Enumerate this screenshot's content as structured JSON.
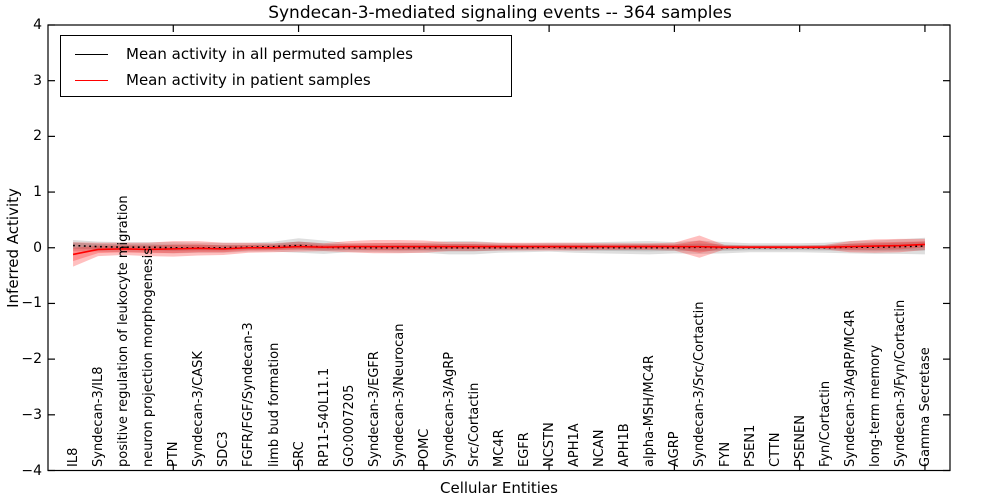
{
  "title": "Syndecan-3-mediated signaling events -- 364 samples",
  "legend": {
    "items": [
      {
        "label": "Mean activity in all permuted samples",
        "color": "#000000"
      },
      {
        "label": "Mean activity in patient samples",
        "color": "#ff0000"
      }
    ]
  },
  "chart_data": {
    "type": "line",
    "title": "Syndecan-3-mediated signaling events -- 364 samples",
    "xlabel": "Cellular Entities",
    "ylabel": "Inferred Activity",
    "ylim": [
      -4,
      4
    ],
    "yticks": [
      4,
      3,
      2,
      1,
      0,
      -1,
      -2,
      -3,
      -4
    ],
    "xtick_every": 5,
    "grid": false,
    "legend_position": "upper left",
    "categories": [
      "IL8",
      "Syndecan-3/IL8",
      "positive regulation of leukocyte migration",
      "neuron projection morphogenesis",
      "PTN",
      "Syndecan-3/CASK",
      "SDC3",
      "FGFR/FGF/Syndecan-3",
      "limb bud formation",
      "SRC",
      "RP11-540L11.1",
      "GO:0007205",
      "Syndecan-3/EGFR",
      "Syndecan-3/Neurocan",
      "POMC",
      "Syndecan-3/AgRP",
      "Src/Cortactin",
      "MC4R",
      "EGFR",
      "NCSTN",
      "APH1A",
      "NCAN",
      "APH1B",
      "alpha-MSH/MC4R",
      "AGRP",
      "Syndecan-3/Src/Cortactin",
      "FYN",
      "PSEN1",
      "CTTN",
      "PSENEN",
      "Fyn/Cortactin",
      "Syndecan-3/AgRP/MC4R",
      "long-term memory",
      "Syndecan-3/Fyn/Cortactin",
      "Gamma Secretase"
    ],
    "series": [
      {
        "name": "Mean activity in all permuted samples",
        "color": "#000000",
        "line_style": "dotted",
        "band_color": "rgba(0,0,0,0.13)",
        "values": [
          0.04,
          0.02,
          0.01,
          0.01,
          0.0,
          0.0,
          0.0,
          0.01,
          0.02,
          0.04,
          0.01,
          0.0,
          0.0,
          0.0,
          0.0,
          0.0,
          0.0,
          0.0,
          0.0,
          0.01,
          0.0,
          0.0,
          0.0,
          0.0,
          0.0,
          0.01,
          0.0,
          0.0,
          0.0,
          0.0,
          0.0,
          0.01,
          0.01,
          0.02,
          0.03
        ],
        "band_halfwidth": [
          0.1,
          0.09,
          0.09,
          0.09,
          0.1,
          0.09,
          0.09,
          0.08,
          0.09,
          0.13,
          0.12,
          0.08,
          0.08,
          0.09,
          0.09,
          0.12,
          0.12,
          0.09,
          0.08,
          0.08,
          0.09,
          0.1,
          0.11,
          0.12,
          0.1,
          0.12,
          0.1,
          0.08,
          0.08,
          0.08,
          0.09,
          0.11,
          0.12,
          0.13,
          0.15
        ]
      },
      {
        "name": "Mean activity in patient samples",
        "color": "#ff0000",
        "line_style": "solid",
        "band_color": "rgba(255,0,0,0.25)",
        "values": [
          -0.12,
          -0.03,
          -0.02,
          -0.03,
          -0.02,
          -0.01,
          -0.02,
          0.0,
          0.0,
          0.02,
          0.01,
          0.02,
          0.02,
          0.02,
          0.02,
          0.02,
          0.02,
          0.02,
          0.02,
          0.02,
          0.02,
          0.02,
          0.02,
          0.02,
          0.02,
          0.02,
          0.01,
          0.01,
          0.01,
          0.01,
          0.01,
          0.02,
          0.03,
          0.04,
          0.06
        ],
        "band_halfwidth": [
          0.22,
          0.12,
          0.11,
          0.12,
          0.14,
          0.13,
          0.11,
          0.09,
          0.08,
          0.09,
          0.07,
          0.1,
          0.12,
          0.12,
          0.11,
          0.08,
          0.08,
          0.07,
          0.07,
          0.07,
          0.07,
          0.06,
          0.06,
          0.06,
          0.07,
          0.2,
          0.04,
          0.03,
          0.03,
          0.03,
          0.04,
          0.1,
          0.12,
          0.12,
          0.1
        ]
      }
    ]
  }
}
